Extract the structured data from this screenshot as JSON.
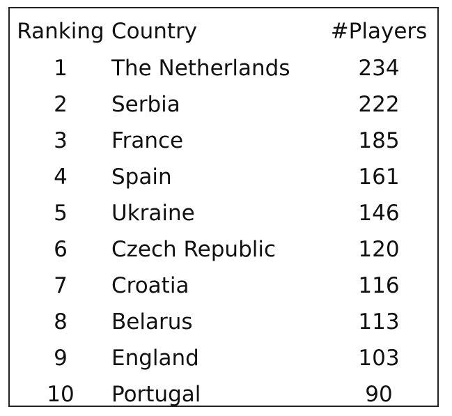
{
  "chart_data": {
    "type": "table",
    "columns": [
      "Ranking",
      "Country",
      "#Players"
    ],
    "rows": [
      {
        "rank": "1",
        "country": "The Netherlands",
        "players": 234
      },
      {
        "rank": "2",
        "country": "Serbia",
        "players": 222
      },
      {
        "rank": "3",
        "country": "France",
        "players": 185
      },
      {
        "rank": "4",
        "country": "Spain",
        "players": 161
      },
      {
        "rank": "5",
        "country": "Ukraine",
        "players": 146
      },
      {
        "rank": "6",
        "country": "Czech Republic",
        "players": 120
      },
      {
        "rank": "7",
        "country": "Croatia",
        "players": 116
      },
      {
        "rank": "8",
        "country": "Belarus",
        "players": 113
      },
      {
        "rank": "9",
        "country": "England",
        "players": 103
      },
      {
        "rank": "10",
        "country": "Portugal",
        "players": 90
      }
    ]
  },
  "colors": {
    "text": "#111111",
    "border": "#222222",
    "background": "#ffffff"
  }
}
